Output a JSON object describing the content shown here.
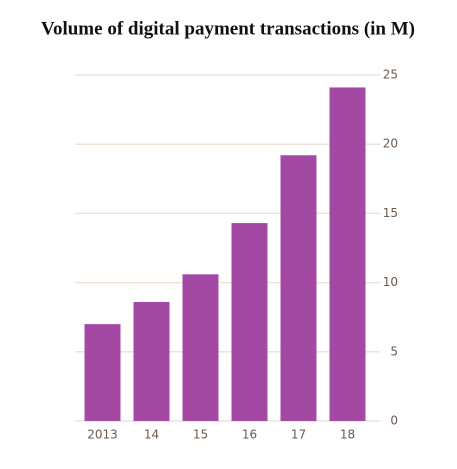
{
  "chart_data": {
    "type": "bar",
    "title": "Volume of digital payment transactions (in M)",
    "categories": [
      "2013",
      "14",
      "15",
      "16",
      "17",
      "18"
    ],
    "values": [
      7.0,
      8.6,
      10.6,
      14.3,
      19.2,
      24.1
    ],
    "color": "#a349a4",
    "ylim": [
      0,
      25
    ],
    "yticks": [
      0,
      5,
      10,
      15,
      20,
      25
    ],
    "grid": true
  }
}
